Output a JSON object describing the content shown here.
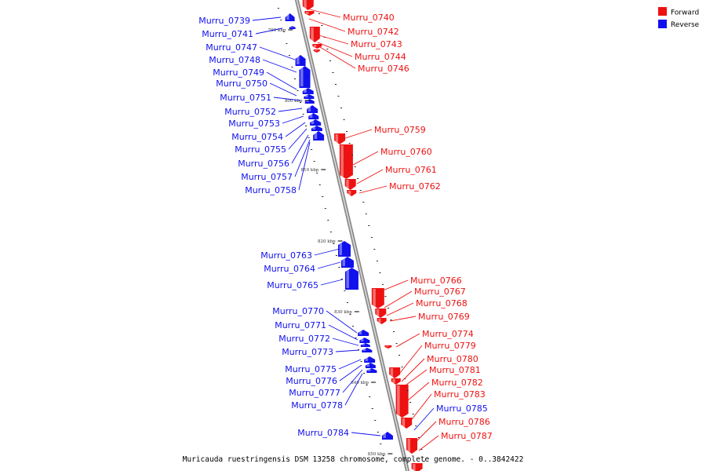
{
  "legend": {
    "forward_label": "Forward",
    "reverse_label": "Reverse",
    "forward_color": "#ee1111",
    "reverse_color": "#1111ee"
  },
  "caption": "Muricauda ruestringensis DSM 13258 chromosome, complete genome. - 0..3842422",
  "ticks": [
    "790 kbp",
    "800 kbp",
    "810 kbp",
    "820 kbp",
    "830 kbp",
    "840 kbp",
    "850 kbp"
  ],
  "forward_genes": [
    "Murru_0740",
    "Murru_0742",
    "Murru_0743",
    "Murru_0744",
    "Murru_0746",
    "Murru_0759",
    "Murru_0760",
    "Murru_0761",
    "Murru_0762",
    "Murru_0766",
    "Murru_0767",
    "Murru_0768",
    "Murru_0769",
    "Murru_0774",
    "Murru_0779",
    "Murru_0780",
    "Murru_0781",
    "Murru_0782",
    "Murru_0783",
    "Murru_0786",
    "Murru_0787"
  ],
  "reverse_genes": [
    "Murru_0739",
    "Murru_0741",
    "Murru_0747",
    "Murru_0748",
    "Murru_0749",
    "Murru_0750",
    "Murru_0751",
    "Murru_0752",
    "Murru_0753",
    "Murru_0754",
    "Murru_0755",
    "Murru_0756",
    "Murru_0757",
    "Murru_0758",
    "Murru_0763",
    "Murru_0764",
    "Murru_0765",
    "Murru_0770",
    "Murru_0771",
    "Murru_0772",
    "Murru_0773",
    "Murru_0775",
    "Murru_0776",
    "Murru_0777",
    "Murru_0778",
    "Murru_0784",
    "Murru_0785"
  ]
}
